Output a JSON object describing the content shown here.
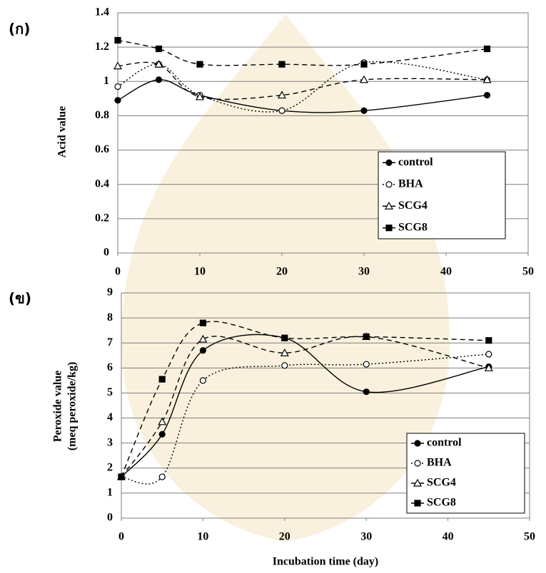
{
  "chart_data": [
    {
      "type": "line",
      "panel": "(ก)",
      "ylabel": [
        "Acid value"
      ],
      "x": [
        0,
        5,
        10,
        20,
        30,
        45
      ],
      "xlim": [
        0,
        50
      ],
      "xticks": [
        0,
        10,
        20,
        30,
        40,
        50
      ],
      "ylim": [
        0,
        1.4
      ],
      "yticks": [
        0,
        0.2,
        0.4,
        0.6,
        0.8,
        1,
        1.2,
        1.4
      ],
      "grid": true,
      "legend": "lower right",
      "smooth": true,
      "series": [
        {
          "name": "control",
          "color": "#000000",
          "dash": "solid",
          "marker": "circle-filled",
          "values": [
            0.89,
            1.01,
            0.92,
            0.83,
            0.83,
            0.92
          ]
        },
        {
          "name": "BHA",
          "color": "#000000",
          "dash": "dotted",
          "marker": "circle-open",
          "values": [
            0.97,
            1.1,
            0.92,
            0.83,
            1.11,
            1.01
          ]
        },
        {
          "name": "SCG4",
          "color": "#000000",
          "dash": "dashed",
          "marker": "triangle-open",
          "values": [
            1.09,
            1.1,
            0.91,
            0.92,
            1.01,
            1.01
          ]
        },
        {
          "name": "SCG8",
          "color": "#000000",
          "dash": "dashed",
          "marker": "square-filled",
          "values": [
            1.24,
            1.19,
            1.1,
            1.1,
            1.1,
            1.19
          ]
        }
      ]
    },
    {
      "type": "line",
      "panel": "(ข)",
      "ylabel": [
        "Peroxide value",
        "(meq peroxide/kg)"
      ],
      "xlabel": "Incubation time (day)",
      "x": [
        0,
        5,
        10,
        20,
        30,
        45
      ],
      "xlim": [
        0,
        50
      ],
      "xticks": [
        0,
        10,
        20,
        30,
        40,
        50
      ],
      "ylim": [
        0,
        9
      ],
      "yticks": [
        0,
        1,
        2,
        3,
        4,
        5,
        6,
        7,
        8,
        9
      ],
      "grid": true,
      "legend": "lower right",
      "smooth": true,
      "series": [
        {
          "name": "control",
          "color": "#000000",
          "dash": "solid",
          "marker": "circle-filled",
          "values": [
            1.65,
            3.35,
            6.7,
            7.2,
            5.05,
            6.05
          ]
        },
        {
          "name": "BHA",
          "color": "#000000",
          "dash": "dotted",
          "marker": "circle-open",
          "values": [
            1.65,
            1.65,
            5.5,
            6.1,
            6.15,
            6.55
          ]
        },
        {
          "name": "SCG4",
          "color": "#000000",
          "dash": "dashed",
          "marker": "triangle-open",
          "values": [
            1.65,
            3.85,
            7.15,
            6.6,
            7.25,
            6.0
          ]
        },
        {
          "name": "SCG8",
          "color": "#000000",
          "dash": "dashed",
          "marker": "square-filled",
          "values": [
            1.65,
            5.55,
            7.8,
            7.2,
            7.25,
            7.1
          ]
        }
      ]
    }
  ]
}
